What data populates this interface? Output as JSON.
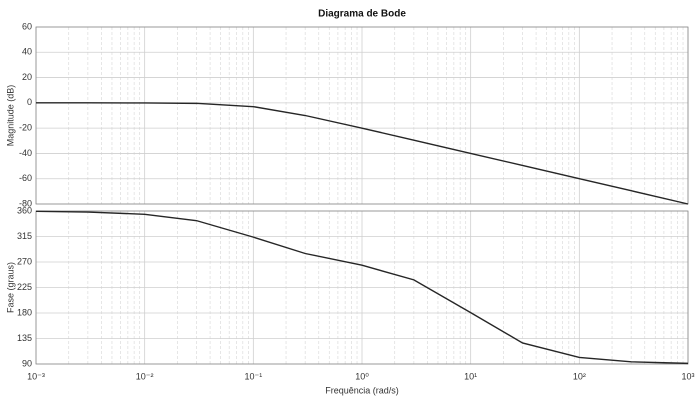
{
  "chart_data": [
    {
      "type": "line",
      "title": "Diagrama de Bode",
      "ylabel": "Magnitude (dB)",
      "log_x": true,
      "grid": true,
      "color": "#262626",
      "xlim": [
        0.001,
        1000
      ],
      "xticks": [
        0.001,
        0.01,
        0.1,
        1,
        10,
        100,
        1000
      ],
      "ylim": [
        -80,
        60
      ],
      "yticks": [
        -80,
        -60,
        -40,
        -20,
        0,
        20,
        40,
        60
      ],
      "x": [
        0.001,
        0.003,
        0.01,
        0.03,
        0.1,
        0.3,
        1,
        3,
        10,
        30,
        100,
        300,
        1000
      ],
      "values": [
        0,
        0,
        -0.04,
        -0.4,
        -3,
        -10,
        -20,
        -29.5,
        -40,
        -49.5,
        -60,
        -69.5,
        -80
      ]
    },
    {
      "type": "line",
      "ylabel": "Fase (graus)",
      "xlabel": "Frequência  (rad/s)",
      "log_x": true,
      "grid": true,
      "color": "#262626",
      "xlim": [
        0.001,
        1000
      ],
      "xticks": [
        {
          "value": 0.001,
          "label": "10⁻³"
        },
        {
          "value": 0.01,
          "label": "10⁻²"
        },
        {
          "value": 0.1,
          "label": "10⁻¹"
        },
        {
          "value": 1,
          "label": "10⁰"
        },
        {
          "value": 10,
          "label": "10¹"
        },
        {
          "value": 100,
          "label": "10²"
        },
        {
          "value": 1000,
          "label": "10³"
        }
      ],
      "ylim": [
        90,
        360
      ],
      "yticks": [
        90,
        135,
        180,
        225,
        270,
        315,
        360
      ],
      "x": [
        0.001,
        0.003,
        0.01,
        0.03,
        0.1,
        0.3,
        1,
        3,
        10,
        30,
        100,
        300,
        1000
      ],
      "values": [
        359.4,
        358.2,
        354.2,
        343.0,
        313.9,
        285.0,
        264.3,
        238.5,
        180.6,
        127.1,
        101.5,
        93.8,
        91.1
      ]
    }
  ]
}
